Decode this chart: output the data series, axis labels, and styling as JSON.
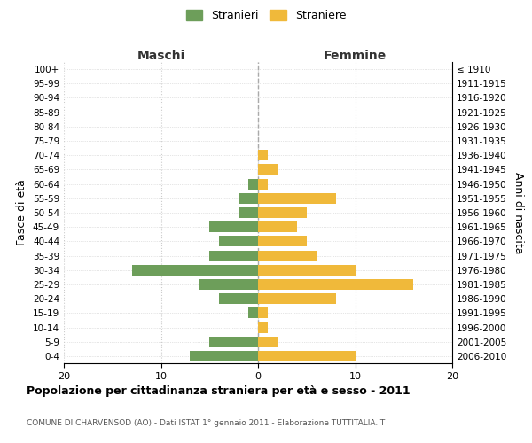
{
  "age_groups": [
    "100+",
    "95-99",
    "90-94",
    "85-89",
    "80-84",
    "75-79",
    "70-74",
    "65-69",
    "60-64",
    "55-59",
    "50-54",
    "45-49",
    "40-44",
    "35-39",
    "30-34",
    "25-29",
    "20-24",
    "15-19",
    "10-14",
    "5-9",
    "0-4"
  ],
  "birth_years": [
    "≤ 1910",
    "1911-1915",
    "1916-1920",
    "1921-1925",
    "1926-1930",
    "1931-1935",
    "1936-1940",
    "1941-1945",
    "1946-1950",
    "1951-1955",
    "1956-1960",
    "1961-1965",
    "1966-1970",
    "1971-1975",
    "1976-1980",
    "1981-1985",
    "1986-1990",
    "1991-1995",
    "1996-2000",
    "2001-2005",
    "2006-2010"
  ],
  "maschi": [
    0,
    0,
    0,
    0,
    0,
    0,
    0,
    0,
    1,
    2,
    2,
    5,
    4,
    5,
    13,
    6,
    4,
    1,
    0,
    5,
    7
  ],
  "femmine": [
    0,
    0,
    0,
    0,
    0,
    0,
    1,
    2,
    1,
    8,
    5,
    4,
    5,
    6,
    10,
    16,
    8,
    1,
    1,
    2,
    10
  ],
  "color_maschi": "#6d9e5a",
  "color_femmine": "#f0b93a",
  "title": "Popolazione per cittadinanza straniera per età e sesso - 2011",
  "subtitle": "COMUNE DI CHARVENSOD (AO) - Dati ISTAT 1° gennaio 2011 - Elaborazione TUTTITALIA.IT",
  "xlabel_left": "Maschi",
  "xlabel_right": "Femmine",
  "ylabel_left": "Fasce di età",
  "ylabel_right": "Anni di nascita",
  "legend_maschi": "Stranieri",
  "legend_femmine": "Straniere",
  "xlim": 20,
  "background_color": "#ffffff",
  "grid_color": "#cccccc"
}
